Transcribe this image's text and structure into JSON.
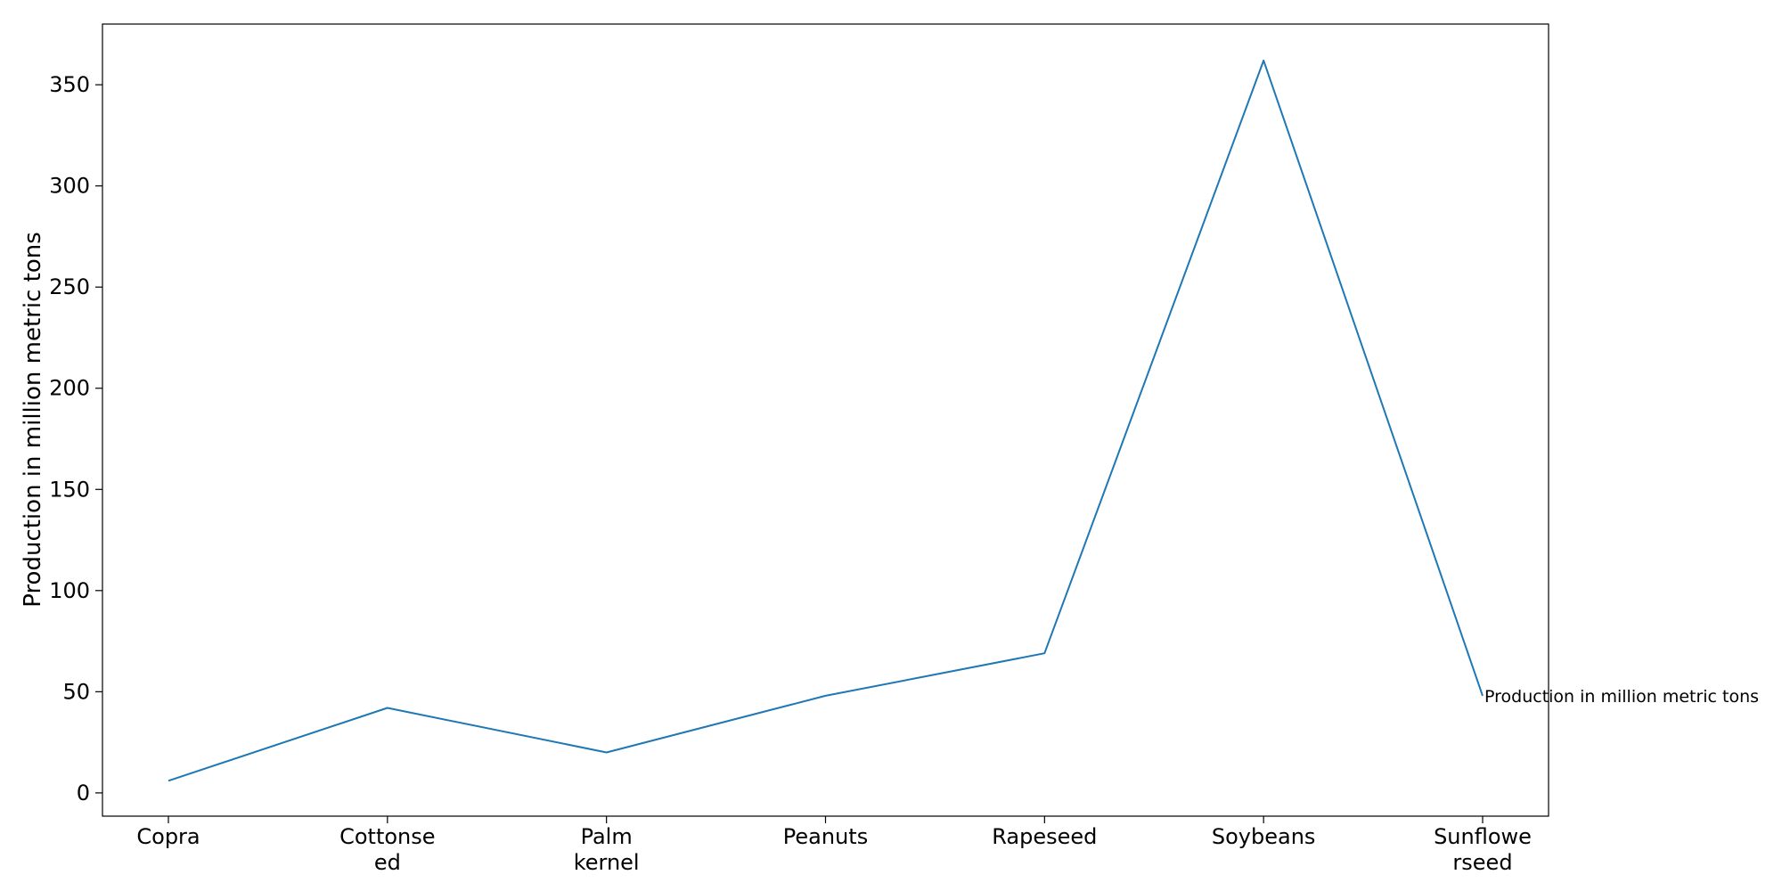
{
  "chart_data": {
    "type": "line",
    "title": "",
    "xlabel": "",
    "ylabel": "Production in million metric tons",
    "categories": [
      "Copra",
      "Cottonseed",
      "Palm kernel",
      "Peanuts",
      "Rapeseed",
      "Soybeans",
      "Sunflowerseed"
    ],
    "category_tick_labels": [
      [
        "Copra"
      ],
      [
        "Cottonse",
        "ed"
      ],
      [
        "Palm",
        "kernel"
      ],
      [
        "Peanuts"
      ],
      [
        "Rapeseed"
      ],
      [
        "Soybeans"
      ],
      [
        "Sunflowe",
        "rseed"
      ]
    ],
    "series": [
      {
        "name": "Production in million metric tons",
        "values": [
          6,
          42,
          20,
          48,
          69,
          362,
          48
        ]
      }
    ],
    "ylim": [
      -11.5,
      380
    ],
    "yticks": [
      0,
      50,
      100,
      150,
      200,
      250,
      300,
      350
    ],
    "grid": false,
    "legend": "none",
    "line_color": "#1f77b4"
  }
}
